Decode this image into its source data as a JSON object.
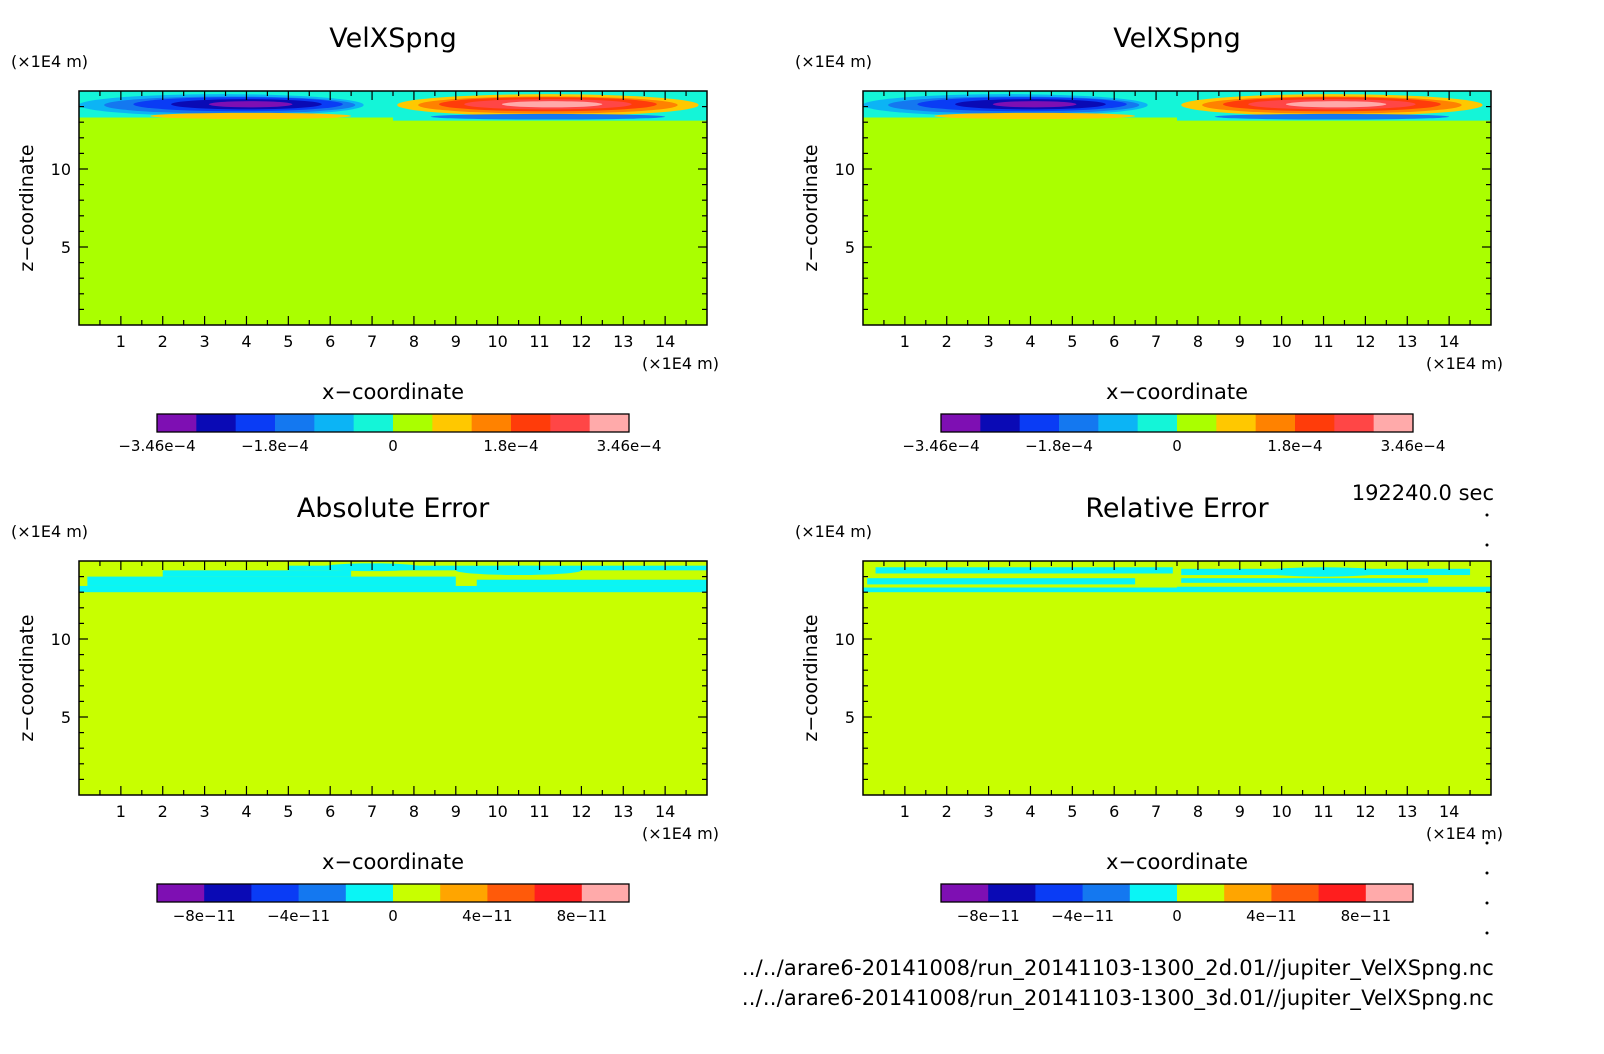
{
  "figure": {
    "time_label": "192240.0 sec",
    "file_paths": [
      "../../arare6-20141008/run_20141103-1300_2d.01//jupiter_VelXSpng.nc",
      "../../arare6-20141008/run_20141103-1300_3d.01//jupiter_VelXSpng.nc"
    ]
  },
  "chart_data": [
    {
      "type": "heatmap",
      "title": "VelXSpng",
      "xlabel": "x−coordinate",
      "ylabel": "z−coordinate",
      "x_unit": "(×1E4 m)",
      "y_unit": "(×1E4 m)",
      "xlim": [
        0,
        15
      ],
      "ylim": [
        0,
        15
      ],
      "xticks": [
        1,
        2,
        3,
        4,
        5,
        6,
        7,
        8,
        9,
        10,
        11,
        12,
        13,
        14
      ],
      "yticks": [
        5,
        10
      ],
      "field_pattern": "negative anomaly centred near x=4 at top (z≈13.5–14.5), positive anomaly centred near x=11, zero elsewhere",
      "colorbar": {
        "colors": [
          "#7e0fb3",
          "#0a0ab5",
          "#0a3cf5",
          "#1478f0",
          "#0cb4f5",
          "#14f5d8",
          "#aaff00",
          "#ffc800",
          "#ff8200",
          "#ff3c0a",
          "#ff4646",
          "#ffaaaa"
        ],
        "tick_labels": [
          "−3.46e−4",
          "−1.8e−4",
          "0",
          "1.8e−4",
          "3.46e−4"
        ],
        "range": [
          -0.000346,
          0.000346
        ]
      }
    },
    {
      "type": "heatmap",
      "title": "VelXSpng",
      "xlabel": "x−coordinate",
      "ylabel": "z−coordinate",
      "x_unit": "(×1E4 m)",
      "y_unit": "(×1E4 m)",
      "xlim": [
        0,
        15
      ],
      "ylim": [
        0,
        15
      ],
      "xticks": [
        1,
        2,
        3,
        4,
        5,
        6,
        7,
        8,
        9,
        10,
        11,
        12,
        13,
        14
      ],
      "yticks": [
        5,
        10
      ],
      "field_pattern": "negative anomaly centred near x=4 at top (z≈13.5–14.5), positive anomaly centred near x=11, zero elsewhere",
      "colorbar": {
        "colors": [
          "#7e0fb3",
          "#0a0ab5",
          "#0a3cf5",
          "#1478f0",
          "#0cb4f5",
          "#14f5d8",
          "#aaff00",
          "#ffc800",
          "#ff8200",
          "#ff3c0a",
          "#ff4646",
          "#ffaaaa"
        ],
        "tick_labels": [
          "−3.46e−4",
          "−1.8e−4",
          "0",
          "1.8e−4",
          "3.46e−4"
        ],
        "range": [
          -0.000346,
          0.000346
        ]
      }
    },
    {
      "type": "heatmap",
      "title": "Absolute Error",
      "xlabel": "x−coordinate",
      "ylabel": "z−coordinate",
      "x_unit": "(×1E4 m)",
      "y_unit": "(×1E4 m)",
      "xlim": [
        0,
        15
      ],
      "ylim": [
        0,
        15
      ],
      "xticks": [
        1,
        2,
        3,
        4,
        5,
        6,
        7,
        8,
        9,
        10,
        11,
        12,
        13,
        14
      ],
      "yticks": [
        5,
        10
      ],
      "field_pattern": "mostly zero; small negative band near top (z≈13–15)",
      "colorbar": {
        "colors": [
          "#7e0fb3",
          "#0a0ab5",
          "#0a3cf5",
          "#1478f0",
          "#0af5f5",
          "#c8ff00",
          "#ffa500",
          "#ff5a0a",
          "#ff1e1e",
          "#ffaaaa"
        ],
        "tick_labels": [
          "−8e−11",
          "−4e−11",
          "0",
          "4e−11",
          "8e−11"
        ],
        "range": [
          -1e-10,
          1e-10
        ]
      }
    },
    {
      "type": "heatmap",
      "title": "Relative Error",
      "xlabel": "x−coordinate",
      "ylabel": "z−coordinate",
      "x_unit": "(×1E4 m)",
      "y_unit": "(×1E4 m)",
      "xlim": [
        0,
        15
      ],
      "ylim": [
        0,
        15
      ],
      "xticks": [
        1,
        2,
        3,
        4,
        5,
        6,
        7,
        8,
        9,
        10,
        11,
        12,
        13,
        14
      ],
      "yticks": [
        5,
        10
      ],
      "field_pattern": "mostly zero; small negative streaks near top (z≈13–15)",
      "colorbar": {
        "colors": [
          "#7e0fb3",
          "#0a0ab5",
          "#0a3cf5",
          "#1478f0",
          "#0af5f5",
          "#c8ff00",
          "#ffa500",
          "#ff5a0a",
          "#ff1e1e",
          "#ffaaaa"
        ],
        "tick_labels": [
          "−8e−11",
          "−4e−11",
          "0",
          "4e−11",
          "8e−11"
        ],
        "range": [
          -1e-10,
          1e-10
        ]
      }
    }
  ]
}
